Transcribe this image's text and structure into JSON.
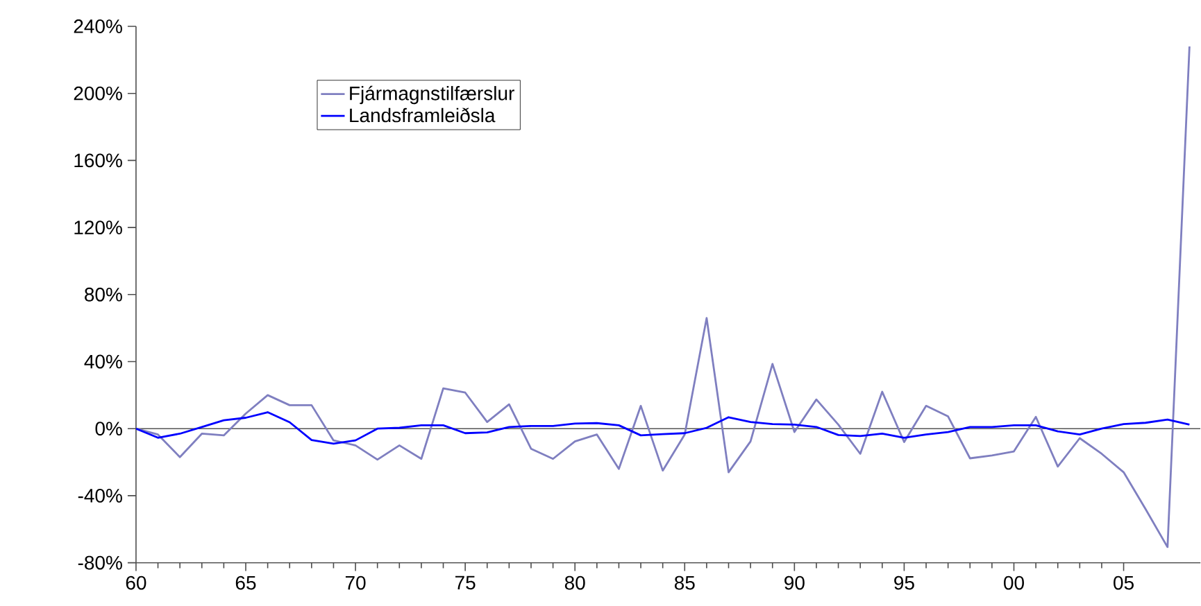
{
  "chart_data": {
    "type": "line",
    "x": [
      1960,
      1961,
      1962,
      1963,
      1964,
      1965,
      1966,
      1967,
      1968,
      1969,
      1970,
      1971,
      1972,
      1973,
      1974,
      1975,
      1976,
      1977,
      1978,
      1979,
      1980,
      1981,
      1982,
      1983,
      1984,
      1985,
      1986,
      1987,
      1988,
      1989,
      1990,
      1991,
      1992,
      1993,
      1994,
      1995,
      1996,
      1997,
      1998,
      1999,
      2000,
      2001,
      2002,
      2003,
      2004,
      2005,
      2006,
      2007,
      2008
    ],
    "series": [
      {
        "name": "Fjármagnstilfærslur",
        "color": "#7f7fc0",
        "values": [
          0,
          -3.5,
          -17,
          -3,
          -4,
          9,
          20,
          14,
          14,
          -7,
          -10,
          -18.5,
          -10,
          -18,
          24,
          21.5,
          4,
          14.5,
          -12,
          -18,
          -7.6,
          -3.5,
          -24,
          13.6,
          -25,
          -3.5,
          66,
          -26,
          -7.6,
          38.6,
          -2,
          17.4,
          2.4,
          -15,
          22,
          -8,
          13.6,
          7.3,
          -17.7,
          -16,
          -13.6,
          7,
          -22.6,
          -5.7,
          -15,
          -26,
          -48,
          -70.7,
          228
        ]
      },
      {
        "name": "Landsframleiðsla",
        "color": "#0000ff",
        "values": [
          0,
          -5.4,
          -3,
          1,
          5,
          6.5,
          9.8,
          3.8,
          -6.8,
          -9,
          -7,
          0,
          0.5,
          2,
          2,
          -2.7,
          -2.2,
          1,
          1.6,
          1.6,
          3,
          3.3,
          2,
          -4,
          -3.3,
          -2.7,
          0.5,
          6.8,
          4,
          2.7,
          2.4,
          1,
          -3.8,
          -4.4,
          -3,
          -5.4,
          -3.5,
          -2,
          1,
          1,
          2,
          2,
          -1.6,
          -3.5,
          0,
          2.7,
          3.5,
          5.4,
          2.4
        ]
      }
    ],
    "xlim": [
      1960,
      2008.5
    ],
    "xticks": [
      {
        "value": 1960,
        "label": "60"
      },
      {
        "value": 1965,
        "label": "65"
      },
      {
        "value": 1970,
        "label": "70"
      },
      {
        "value": 1975,
        "label": "75"
      },
      {
        "value": 1980,
        "label": "80"
      },
      {
        "value": 1985,
        "label": "85"
      },
      {
        "value": 1990,
        "label": "90"
      },
      {
        "value": 1995,
        "label": "95"
      },
      {
        "value": 2000,
        "label": "00"
      },
      {
        "value": 2005,
        "label": "05"
      }
    ],
    "ylim": [
      -80,
      240
    ],
    "yticks": [
      {
        "value": -80,
        "label": "-80%"
      },
      {
        "value": -40,
        "label": "-40%"
      },
      {
        "value": 0,
        "label": "0%"
      },
      {
        "value": 40,
        "label": "40%"
      },
      {
        "value": 80,
        "label": "80%"
      },
      {
        "value": 120,
        "label": "120%"
      },
      {
        "value": 160,
        "label": "160%"
      },
      {
        "value": 200,
        "label": "200%"
      },
      {
        "value": 240,
        "label": "240%"
      }
    ],
    "ref_lines": [
      {
        "axis": "y",
        "value": 0,
        "color": "#555555"
      }
    ],
    "legend": "top left",
    "grid": false,
    "marker": "none",
    "line_style": "solid"
  }
}
